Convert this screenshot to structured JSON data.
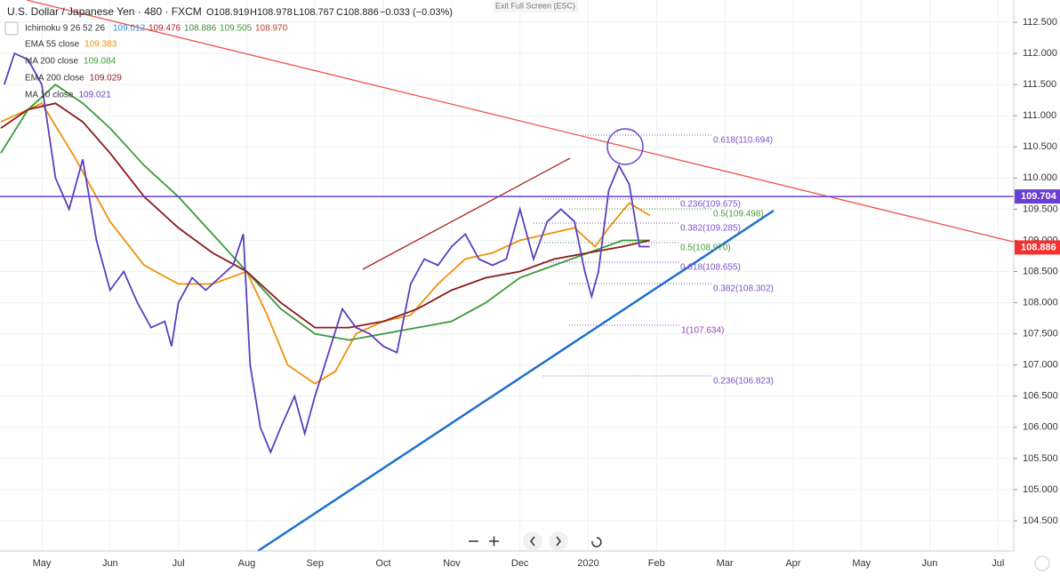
{
  "header": {
    "symbol": "U.S. Dollar / Japanese Yen · 480 · FXCM",
    "open": "O108.919",
    "high": "H108.978",
    "low": "L108.767",
    "close": "C108.886",
    "change": "−0.033 (−0.03%)",
    "exit": "Exit Full Screen (ESC)"
  },
  "ichimoku": {
    "name": "Ichimoku 9 26 52 26",
    "values": [
      {
        "label": "109.012",
        "color": "#2a8fd6"
      },
      {
        "label": "109.476",
        "color": "#b22222"
      },
      {
        "label": "108.886",
        "color": "#3a8a3a"
      },
      {
        "label": "109.505",
        "color": "#3a9a3a"
      },
      {
        "label": "108.970",
        "color": "#c0392b"
      }
    ]
  },
  "chart_data": {
    "type": "line",
    "grid": true,
    "xlim": [
      4.388,
      19.23
    ],
    "ylim": [
      104.015,
      112.857
    ],
    "xticks": [
      {
        "value": 5,
        "label": "May"
      },
      {
        "value": 6,
        "label": "Jun"
      },
      {
        "value": 7,
        "label": "Jul"
      },
      {
        "value": 8,
        "label": "Aug"
      },
      {
        "value": 9,
        "label": "Sep"
      },
      {
        "value": 10,
        "label": "Oct"
      },
      {
        "value": 11,
        "label": "Nov"
      },
      {
        "value": 12,
        "label": "Dec"
      },
      {
        "value": 13,
        "label": "2020"
      },
      {
        "value": 14,
        "label": "Feb"
      },
      {
        "value": 15,
        "label": "Mar"
      },
      {
        "value": 16,
        "label": "Apr"
      },
      {
        "value": 17,
        "label": "May"
      },
      {
        "value": 18,
        "label": "Jun"
      },
      {
        "value": 19,
        "label": "Jul"
      }
    ],
    "yticks": [
      {
        "value": 104.5,
        "label": "104.500"
      },
      {
        "value": 105,
        "label": "105.000"
      },
      {
        "value": 105.5,
        "label": "105.500"
      },
      {
        "value": 106,
        "label": "106.000"
      },
      {
        "value": 106.5,
        "label": "106.500"
      },
      {
        "value": 107,
        "label": "107.000"
      },
      {
        "value": 107.5,
        "label": "107.500"
      },
      {
        "value": 108,
        "label": "108.000"
      },
      {
        "value": 108.5,
        "label": "108.500"
      },
      {
        "value": 109,
        "label": "109.000"
      },
      {
        "value": 109.5,
        "label": "109.500"
      },
      {
        "value": 110,
        "label": "110.000"
      },
      {
        "value": 110.5,
        "label": "110.500"
      },
      {
        "value": 111,
        "label": "111.000"
      },
      {
        "value": 111.5,
        "label": "111.500"
      },
      {
        "value": 112,
        "label": "112.000"
      },
      {
        "value": 112.5,
        "label": "112.500"
      }
    ],
    "series": [
      {
        "name": "EMA 55 close",
        "legend_value": "109.383",
        "color": "#f0900a",
        "x": [
          4.4,
          5.0,
          5.5,
          6.0,
          6.5,
          7.0,
          7.5,
          8.0,
          8.3,
          8.6,
          9.0,
          9.3,
          9.6,
          10.0,
          10.4,
          10.8,
          11.2,
          11.6,
          12.0,
          12.4,
          12.8,
          13.1,
          13.3,
          13.6,
          13.9
        ],
        "values": [
          110.9,
          111.2,
          110.3,
          109.3,
          108.6,
          108.3,
          108.3,
          108.5,
          107.8,
          107.0,
          106.7,
          106.9,
          107.5,
          107.7,
          107.8,
          108.3,
          108.7,
          108.8,
          109.0,
          109.1,
          109.2,
          108.9,
          109.2,
          109.6,
          109.4
        ]
      },
      {
        "name": "MA 200 close",
        "legend_value": "109.084",
        "color": "#3a9a3a",
        "x": [
          4.4,
          4.8,
          5.2,
          5.6,
          6.0,
          6.5,
          7.0,
          7.5,
          8.0,
          8.5,
          9.0,
          9.5,
          10.0,
          10.5,
          11.0,
          11.5,
          12.0,
          12.5,
          13.0,
          13.5,
          13.9
        ],
        "values": [
          110.4,
          111.1,
          111.5,
          111.2,
          110.8,
          110.2,
          109.7,
          109.1,
          108.5,
          107.9,
          107.5,
          107.4,
          107.5,
          107.6,
          107.7,
          108.0,
          108.4,
          108.6,
          108.8,
          109.0,
          109.0
        ]
      },
      {
        "name": "EMA 200 close",
        "legend_value": "109.029",
        "color": "#8b1a1a",
        "x": [
          4.4,
          4.8,
          5.2,
          5.6,
          6.0,
          6.5,
          7.0,
          7.5,
          8.0,
          8.5,
          9.0,
          9.5,
          10.0,
          10.5,
          11.0,
          11.5,
          12.0,
          12.5,
          13.0,
          13.5,
          13.9
        ],
        "values": [
          110.8,
          111.1,
          111.2,
          110.9,
          110.4,
          109.7,
          109.2,
          108.8,
          108.5,
          108.0,
          107.6,
          107.6,
          107.7,
          107.9,
          108.2,
          108.4,
          108.5,
          108.7,
          108.8,
          108.9,
          109.0
        ]
      },
      {
        "name": "MA 10 close",
        "legend_value": "109.021",
        "color": "#5b3fbf",
        "x": [
          4.45,
          4.6,
          4.8,
          5.0,
          5.2,
          5.4,
          5.6,
          5.8,
          6.0,
          6.2,
          6.4,
          6.6,
          6.8,
          6.9,
          7.0,
          7.2,
          7.4,
          7.6,
          7.8,
          7.95,
          8.05,
          8.2,
          8.35,
          8.5,
          8.7,
          8.85,
          9.0,
          9.2,
          9.4,
          9.6,
          9.8,
          10.0,
          10.2,
          10.4,
          10.6,
          10.8,
          11.0,
          11.2,
          11.4,
          11.6,
          11.8,
          12.0,
          12.2,
          12.4,
          12.6,
          12.8,
          12.95,
          13.05,
          13.15,
          13.3,
          13.45,
          13.6,
          13.75,
          13.9
        ],
        "values": [
          111.5,
          112.0,
          111.9,
          111.5,
          110.0,
          109.5,
          110.3,
          109.0,
          108.2,
          108.5,
          108.0,
          107.6,
          107.7,
          107.3,
          108.0,
          108.4,
          108.2,
          108.4,
          108.6,
          109.1,
          107.0,
          106.0,
          105.6,
          106.0,
          106.5,
          105.9,
          106.5,
          107.2,
          107.9,
          107.6,
          107.5,
          107.3,
          107.2,
          108.3,
          108.7,
          108.6,
          108.9,
          109.1,
          108.7,
          108.6,
          108.7,
          109.5,
          108.7,
          109.3,
          109.5,
          109.3,
          108.5,
          108.1,
          108.5,
          109.8,
          110.2,
          109.9,
          108.9,
          108.9
        ]
      }
    ],
    "hline": {
      "value": 109.704,
      "label": "109.704",
      "color": "#6a3fd0"
    },
    "last_price": {
      "value": 108.886,
      "label": "108.886",
      "color": "#f23030"
    },
    "annotations": [
      {
        "text": "0.618(110.694)",
        "color": "#7b52c8"
      },
      {
        "text": "0.236(109.675)",
        "color": "#7b52c8"
      },
      {
        "text": "0.5(109.498)",
        "color": "#4a9a3a"
      },
      {
        "text": "0.382(109.285)",
        "color": "#7b52c8"
      },
      {
        "text": "0.5(108.970)",
        "color": "#4a9a3a"
      },
      {
        "text": "0.618(108.655)",
        "color": "#7b52c8"
      },
      {
        "text": "0.382(108.302)",
        "color": "#7b52c8"
      },
      {
        "text": "1(107.634)",
        "color": "#a13cc8"
      },
      {
        "text": "0.236(106.823)",
        "color": "#7b52c8"
      }
    ]
  }
}
